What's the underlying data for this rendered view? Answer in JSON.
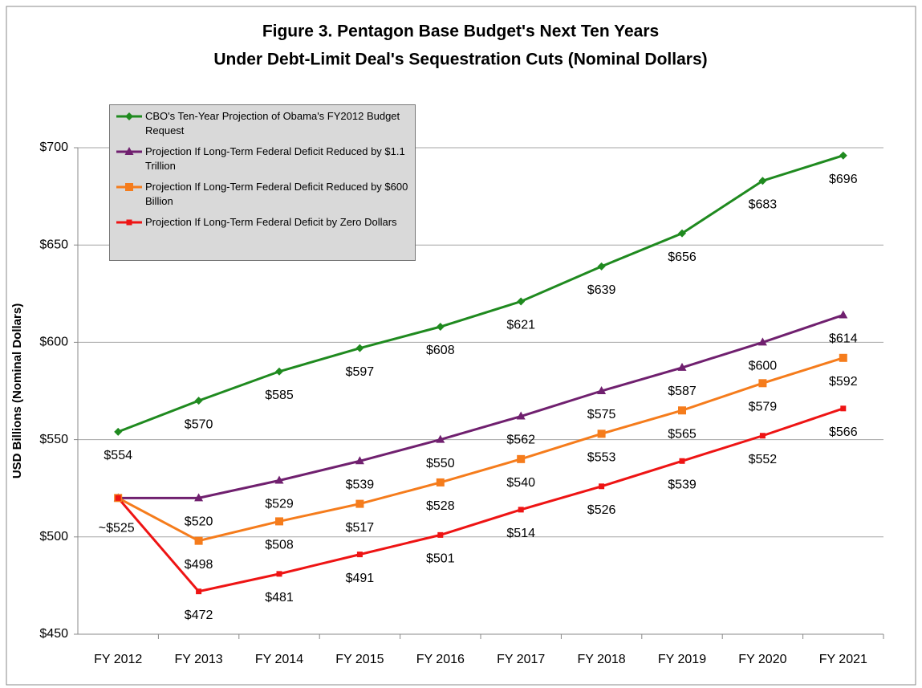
{
  "chart_data": {
    "type": "line",
    "title": [
      "Figure 3.  Pentagon Base Budget's Next Ten Years",
      "Under Debt-Limit Deal's Sequestration Cuts (Nominal Dollars)"
    ],
    "ylabel": "USD Billions (Nominal Dollars)",
    "annotation": "~$525",
    "categories": [
      "FY 2012",
      "FY 2013",
      "FY 2014",
      "FY 2015",
      "FY 2016",
      "FY 2017",
      "FY 2018",
      "FY 2019",
      "FY 2020",
      "FY 2021"
    ],
    "ylim": [
      450,
      700
    ],
    "yticks": [
      {
        "value": 450,
        "label": "$450"
      },
      {
        "value": 500,
        "label": "$500"
      },
      {
        "value": 550,
        "label": "$550"
      },
      {
        "value": 600,
        "label": "$600"
      },
      {
        "value": 650,
        "label": "$650"
      },
      {
        "value": 700,
        "label": "$700"
      }
    ],
    "grid": true,
    "legend": "upper left",
    "series": [
      {
        "name": "CBO's Ten-Year Projection of Obama's FY2012 Budget Request",
        "color": "#1f8a1f",
        "marker": "diamond",
        "values": [
          554,
          570,
          585,
          597,
          608,
          621,
          639,
          656,
          683,
          696
        ],
        "value_labels": [
          "$554",
          "$570",
          "$585",
          "$597",
          "$608",
          "$621",
          "$639",
          "$656",
          "$683",
          "$696"
        ]
      },
      {
        "name": "Projection If Long-Term Federal Deficit Reduced by $1.1 Trillion",
        "color": "#70206f",
        "marker": "triangle",
        "values": [
          520,
          520,
          529,
          539,
          550,
          562,
          575,
          587,
          600,
          614
        ],
        "value_labels": [
          null,
          "$520",
          "$529",
          "$539",
          "$550",
          "$562",
          "$575",
          "$587",
          "$600",
          "$614"
        ]
      },
      {
        "name": "Projection If Long-Term Federal Deficit Reduced by $600 Billion",
        "color": "#f57c1c",
        "marker": "square",
        "values": [
          520,
          498,
          508,
          517,
          528,
          540,
          553,
          565,
          579,
          592
        ],
        "value_labels": [
          null,
          "$498",
          "$508",
          "$517",
          "$528",
          "$540",
          "$553",
          "$565",
          "$579",
          "$592"
        ]
      },
      {
        "name": "Projection If Long-Term Federal Deficit by Zero Dollars",
        "color": "#ee1414",
        "marker": "smallsquare",
        "values": [
          520,
          472,
          481,
          491,
          501,
          514,
          526,
          539,
          552,
          566
        ],
        "value_labels": [
          null,
          "$472",
          "$481",
          "$491",
          "$501",
          "$514",
          "$526",
          "$539",
          "$552",
          "$566"
        ]
      }
    ]
  }
}
